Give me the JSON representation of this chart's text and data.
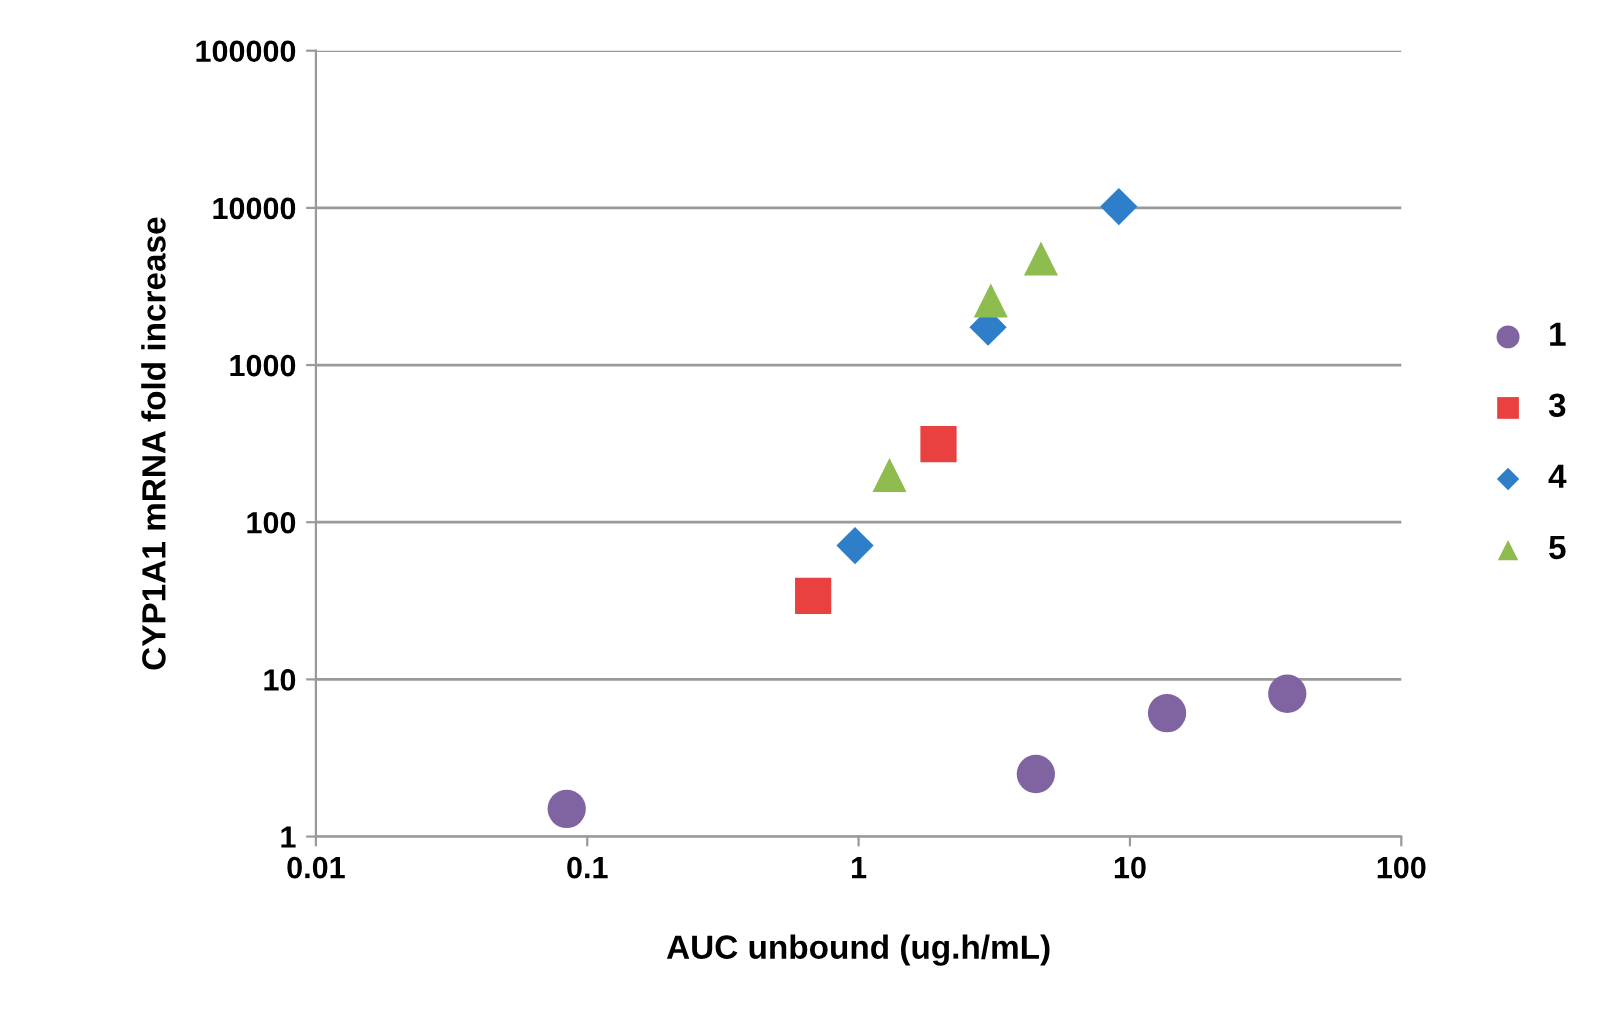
{
  "chart_data": {
    "type": "scatter",
    "xlabel": "AUC unbound (ug.h/mL)",
    "ylabel": "CYP1A1 mRNA fold increase",
    "log": "xy",
    "xlim": [
      0.01,
      100
    ],
    "xticks": [
      0.01,
      0.1,
      1,
      10,
      100
    ],
    "ylim": [
      1,
      100000
    ],
    "yticks": [
      1,
      10,
      100,
      1000,
      10000,
      100000
    ],
    "grid": "y",
    "legend": "right",
    "series": [
      {
        "name": "1",
        "color": "#8064a2",
        "marker": "circle",
        "x": [
          0.084,
          4.5,
          13.7,
          38
        ],
        "values": [
          1.5,
          2.5,
          6.1,
          8.1
        ]
      },
      {
        "name": "3",
        "color": "#e8413f",
        "marker": "square",
        "x": [
          0.68,
          1.97
        ],
        "values": [
          34,
          314
        ]
      },
      {
        "name": "4",
        "color": "#2f7ec9",
        "marker": "diamond",
        "x": [
          0.97,
          3.0,
          9.1
        ],
        "values": [
          71,
          1740,
          10200
        ]
      },
      {
        "name": "5",
        "color": "#8fbc4f",
        "marker": "triangle",
        "x": [
          1.3,
          3.07,
          4.7
        ],
        "values": [
          200,
          2570,
          4760
        ]
      }
    ]
  }
}
